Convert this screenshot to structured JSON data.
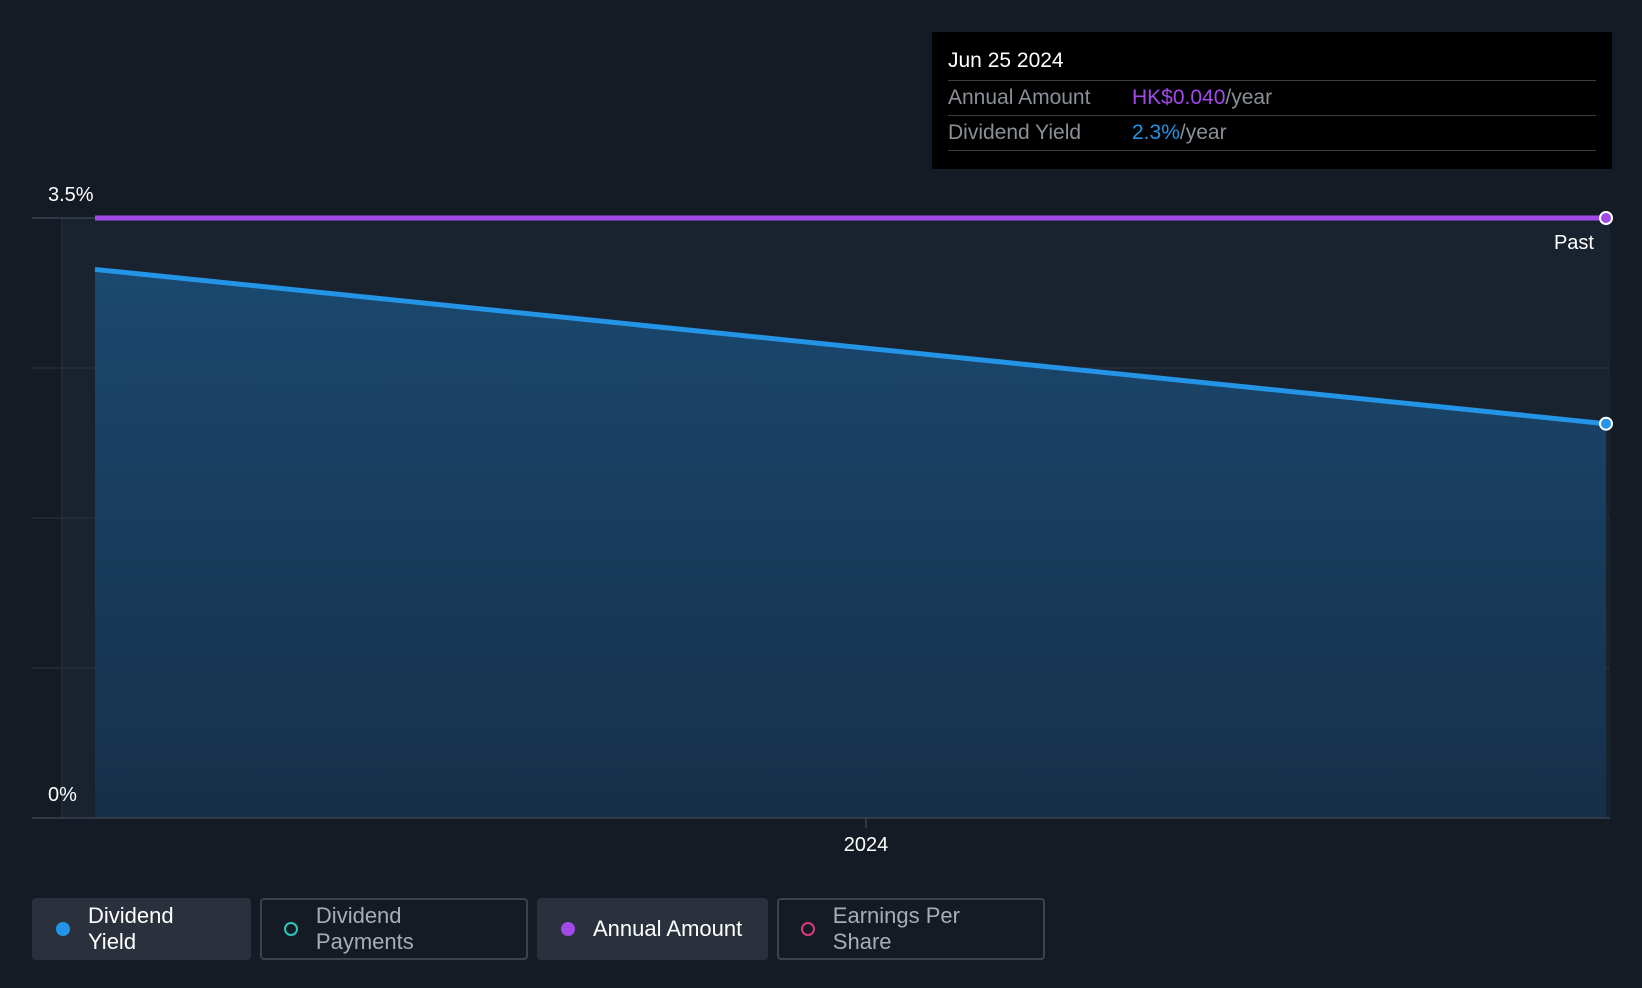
{
  "chart_data": {
    "type": "area",
    "title": "",
    "xlabel": "",
    "ylabel": "",
    "y_tick_labels": [
      "3.5%",
      "0%"
    ],
    "ylim": [
      0,
      3.5
    ],
    "x_tick_labels": [
      "2024"
    ],
    "region_label": "Past",
    "series": [
      {
        "name": "Dividend Yield",
        "color": "#2394e6",
        "points": [
          {
            "x": "2023-07",
            "y": 3.2
          },
          {
            "x": "2024-06-25",
            "y": 2.3
          }
        ]
      },
      {
        "name": "Annual Amount",
        "color": "#a24ae8",
        "points": [
          {
            "x": "2023-07",
            "y": 3.5
          },
          {
            "x": "2024-06-25",
            "y": 3.5
          }
        ]
      }
    ]
  },
  "tooltip": {
    "date": "Jun 25 2024",
    "annual_amount_label": "Annual Amount",
    "annual_amount_value": "HK$0.040",
    "annual_amount_unit": "/year",
    "dividend_yield_label": "Dividend Yield",
    "dividend_yield_value": "2.3%",
    "dividend_yield_unit": "/year"
  },
  "legend": [
    {
      "label": "Dividend Yield",
      "color": "#2394e6",
      "active": true
    },
    {
      "label": "Dividend Payments",
      "color": "#2ec4b6",
      "active": false
    },
    {
      "label": "Annual Amount",
      "color": "#a24ae8",
      "active": true
    },
    {
      "label": "Earnings Per Share",
      "color": "#d63c7a",
      "active": false
    }
  ],
  "colors": {
    "background": "#151b24",
    "yield": "#2394e6",
    "amount": "#a24ae8"
  }
}
